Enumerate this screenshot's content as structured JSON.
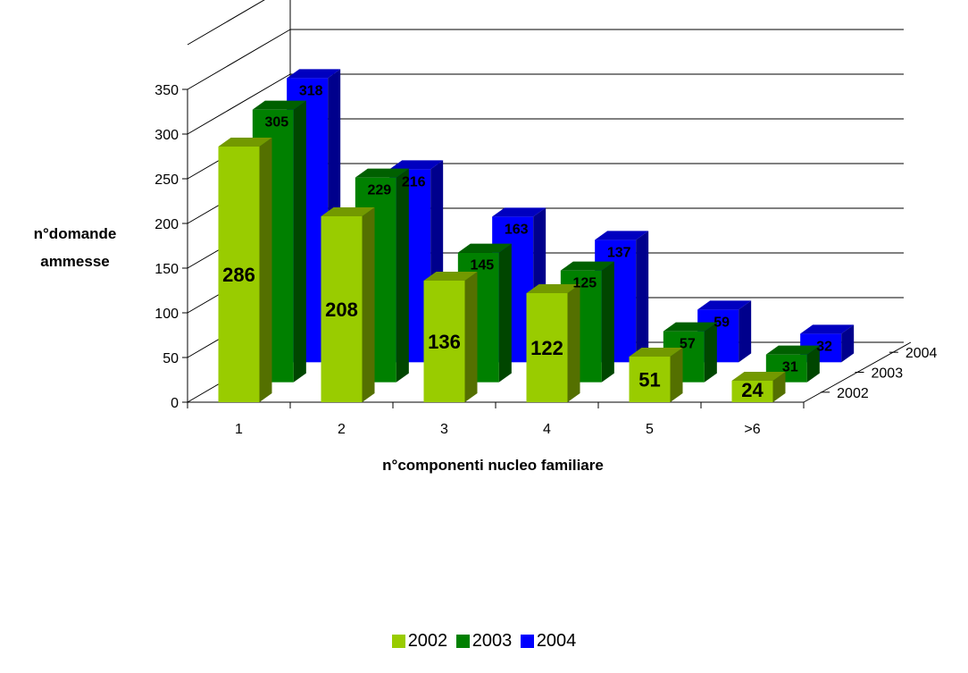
{
  "chart_data": {
    "type": "bar",
    "style": "3d-clustered-depth",
    "categories": [
      "1",
      "2",
      "3",
      "4",
      "5",
      ">6"
    ],
    "series": [
      {
        "name": "2002",
        "values": [
          286,
          208,
          136,
          122,
          51,
          24
        ],
        "color": "#99cc00"
      },
      {
        "name": "2003",
        "values": [
          305,
          229,
          145,
          125,
          57,
          31
        ],
        "color": "#008000"
      },
      {
        "name": "2004",
        "values": [
          318,
          216,
          163,
          137,
          59,
          32
        ],
        "color": "#0000ff"
      }
    ],
    "xlabel": "n°componenti nucleo familiare",
    "ylabel_lines": [
      "n°domande",
      "ammesse"
    ],
    "yticks": [
      "0",
      "50",
      "100",
      "150",
      "200",
      "250",
      "300",
      "350"
    ],
    "ylim": [
      0,
      350
    ],
    "depth_labels": [
      "2002",
      "2003",
      "2004"
    ],
    "grid": true,
    "legend_position": "bottom"
  }
}
